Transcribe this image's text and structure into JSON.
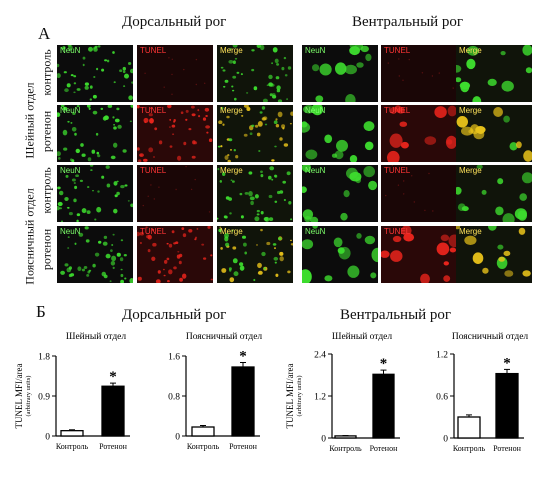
{
  "panelA": {
    "letter": "А",
    "dorsal_title": "Дорсальный рог",
    "ventral_title": "Вентральный рог",
    "regions": [
      "Шейный отдел",
      "Поясничный отдел"
    ],
    "conditions": [
      "контроль",
      "ротенон",
      "контроль",
      "ротенон"
    ],
    "channels": [
      "NeuN",
      "TUNEL",
      "Merge"
    ]
  },
  "panelB": {
    "letter": "Б",
    "dorsal_title": "Дорсальный рог",
    "ventral_title": "Вентральный рог",
    "ylabel": "TUNEL MFI/area",
    "ylabel_sub": "(arbitrary units)",
    "significance_mark": "*"
  },
  "colors": {
    "neun": "#3ddc2e",
    "tunel": "#e8241c",
    "merge": "#e8c21a",
    "bar_control": "#ffffff",
    "bar_rotenone": "#000000"
  },
  "chart_data": [
    {
      "type": "bar",
      "title": "Шейный отдел",
      "categories": [
        "Контроль",
        "Ротенон"
      ],
      "values": [
        0.12,
        1.12
      ],
      "errors": [
        0.02,
        0.07
      ],
      "yticks": [
        "0",
        "0.9",
        "1.8"
      ],
      "ylim": [
        0,
        1.8
      ],
      "significant": [
        false,
        true
      ]
    },
    {
      "type": "bar",
      "title": "Поясничный отдел",
      "categories": [
        "Контроль",
        "Ротенон"
      ],
      "values": [
        0.18,
        1.38
      ],
      "errors": [
        0.03,
        0.09
      ],
      "yticks": [
        "0",
        "0.8",
        "1.6"
      ],
      "ylim": [
        0,
        1.6
      ],
      "significant": [
        false,
        true
      ]
    },
    {
      "type": "bar",
      "title": "Шейный отдел",
      "categories": [
        "Контроль",
        "Ротенон"
      ],
      "values": [
        0.06,
        1.82
      ],
      "errors": [
        0.01,
        0.12
      ],
      "yticks": [
        "0",
        "1.2",
        "2.4"
      ],
      "ylim": [
        0,
        2.4
      ],
      "significant": [
        false,
        true
      ]
    },
    {
      "type": "bar",
      "title": "Поясничный отдел",
      "categories": [
        "Контроль",
        "Ротенон"
      ],
      "values": [
        0.3,
        0.92
      ],
      "errors": [
        0.03,
        0.06
      ],
      "yticks": [
        "0",
        "0.6",
        "1.2"
      ],
      "ylim": [
        0,
        1.2
      ],
      "significant": [
        false,
        true
      ]
    }
  ]
}
